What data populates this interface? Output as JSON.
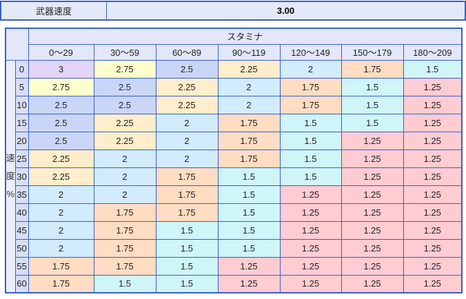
{
  "top_bar": {
    "label": "武器速度",
    "value": "3.00"
  },
  "table": {
    "group_header": "スタミナ",
    "column_headers": [
      "0〜29",
      "30〜59",
      "60〜89",
      "90〜119",
      "120〜149",
      "150〜179",
      "180〜209"
    ],
    "row_axis_label": [
      "速",
      "度",
      "%"
    ],
    "rows": [
      {
        "header": "0",
        "values": [
          "3",
          "2.75",
          "2.5",
          "2.25",
          "2",
          "1.75",
          "1.5"
        ]
      },
      {
        "header": "5",
        "values": [
          "2.75",
          "2.5",
          "2.25",
          "2",
          "1.75",
          "1.5",
          "1.25"
        ]
      },
      {
        "header": "10",
        "values": [
          "2.5",
          "2.5",
          "2.25",
          "2",
          "1.75",
          "1.5",
          "1.25"
        ]
      },
      {
        "header": "15",
        "values": [
          "2.5",
          "2.25",
          "2",
          "1.75",
          "1.5",
          "1.5",
          "1.25"
        ]
      },
      {
        "header": "20",
        "values": [
          "2.5",
          "2.25",
          "2",
          "1.75",
          "1.5",
          "1.25",
          "1.25"
        ]
      },
      {
        "header": "25",
        "values": [
          "2.25",
          "2",
          "2",
          "1.75",
          "1.5",
          "1.25",
          "1.25"
        ]
      },
      {
        "header": "30",
        "values": [
          "2.25",
          "2",
          "1.75",
          "1.5",
          "1.5",
          "1.25",
          "1.25"
        ]
      },
      {
        "header": "35",
        "values": [
          "2",
          "2",
          "1.75",
          "1.5",
          "1.25",
          "1.25",
          "1.25"
        ]
      },
      {
        "header": "40",
        "values": [
          "2",
          "1.75",
          "1.75",
          "1.5",
          "1.25",
          "1.25",
          "1.25"
        ]
      },
      {
        "header": "45",
        "values": [
          "2",
          "1.75",
          "1.5",
          "1.5",
          "1.25",
          "1.25",
          "1.25"
        ]
      },
      {
        "header": "50",
        "values": [
          "2",
          "1.75",
          "1.5",
          "1.5",
          "1.25",
          "1.25",
          "1.25"
        ]
      },
      {
        "header": "55",
        "values": [
          "1.75",
          "1.75",
          "1.5",
          "1.25",
          "1.25",
          "1.25",
          "1.25"
        ]
      },
      {
        "header": "60",
        "values": [
          "1.75",
          "1.5",
          "1.5",
          "1.25",
          "1.25",
          "1.25",
          "1.25"
        ]
      }
    ],
    "value_colors": {
      "3": "#e3d5f7",
      "2.75": "#ffffcd",
      "2.5": "#c9d6f8",
      "2.25": "#ffedcb",
      "2": "#d2ebfd",
      "1.75": "#ffdcc2",
      "1.5": "#cff5f8",
      "1.25": "#ffccd2"
    }
  },
  "colors": {
    "border": "#3a5fc6",
    "topbar_bg": "#e4e9f8",
    "header_bg": "#e2e7f9",
    "rowheader_bg": "#d7def5",
    "axis_bg": "#eaeefb",
    "text": "#222222"
  }
}
